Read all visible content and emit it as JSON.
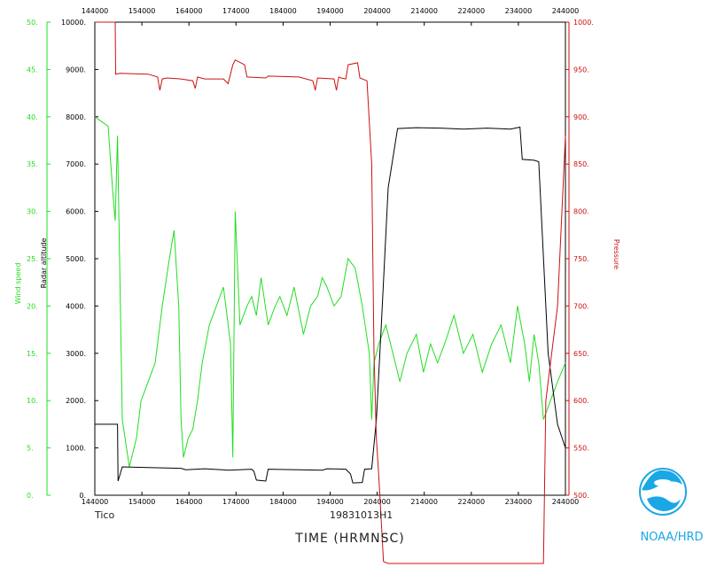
{
  "chart_data": {
    "type": "line",
    "flight_id": "19831013H1",
    "aircraft": "Tico",
    "xlabel": "TIME (HRMNSC)",
    "credit": "NOAA/HRD",
    "x_ticks_bottom": [
      "144000",
      "154000",
      "164000",
      "174000",
      "184000",
      "194000",
      "204000",
      "214000",
      "224000",
      "234000",
      "244000"
    ],
    "x_ticks_top": [
      "144000",
      "154000",
      "164000",
      "174000",
      "184000",
      "194000",
      "204000",
      "214000",
      "224000",
      "234000",
      "244000"
    ],
    "x_range_hours": [
      14.667,
      24.667
    ],
    "axes": {
      "wind": {
        "label": "Wind speed",
        "range": [
          0,
          50
        ],
        "ticks": [
          "0.",
          "5.",
          "10.",
          "15.",
          "20.",
          "25.",
          "30.",
          "35.",
          "40.",
          "45.",
          "50."
        ],
        "color": "#22dd22"
      },
      "altitude": {
        "label": "Radar altitude",
        "range": [
          0,
          10000
        ],
        "ticks": [
          "0.",
          "1000.",
          "2000.",
          "3000.",
          "4000.",
          "5000.",
          "6000.",
          "7000.",
          "8000.",
          "9000.",
          "10000."
        ],
        "color": "#000000"
      },
      "pressure": {
        "label": "Pressure",
        "range": [
          500,
          1000
        ],
        "ticks": [
          "500.",
          "550.",
          "600.",
          "650.",
          "700.",
          "750.",
          "800.",
          "850.",
          "900.",
          "950.",
          "1000."
        ],
        "color": "#cc1111"
      }
    },
    "series": [
      {
        "name": "Wind speed",
        "color": "#22dd22",
        "axis": "wind",
        "x": [
          14.667,
          14.95,
          15.05,
          15.1,
          15.15,
          15.25,
          15.4,
          15.55,
          15.65,
          15.8,
          15.95,
          16.1,
          16.25,
          16.35,
          16.45,
          16.5,
          16.55,
          16.65,
          16.75,
          16.85,
          16.95,
          17.1,
          17.25,
          17.4,
          17.55,
          17.6,
          17.65,
          17.75,
          17.9,
          18.0,
          18.1,
          18.2,
          18.35,
          18.5,
          18.6,
          18.75,
          18.9,
          19.1,
          19.25,
          19.4,
          19.5,
          19.6,
          19.75,
          19.9,
          20.05,
          20.2,
          20.35,
          20.5,
          20.55,
          20.6,
          20.7,
          20.85,
          21.0,
          21.15,
          21.3,
          21.5,
          21.65,
          21.8,
          21.95,
          22.1,
          22.3,
          22.5,
          22.7,
          22.9,
          23.1,
          23.3,
          23.5,
          23.65,
          23.8,
          23.9,
          24.0,
          24.1,
          24.2,
          24.35,
          24.5,
          24.667
        ],
        "y": [
          40,
          39,
          32,
          29,
          38,
          8,
          3,
          6,
          10,
          12,
          14,
          20,
          25,
          28,
          20,
          8,
          4,
          6,
          7,
          10,
          14,
          18,
          20,
          22,
          16,
          4,
          30,
          18,
          20,
          21,
          19,
          23,
          18,
          20,
          21,
          19,
          22,
          17,
          20,
          21,
          23,
          22,
          20,
          21,
          25,
          24,
          20,
          15,
          8,
          14,
          16,
          18,
          15,
          12,
          15,
          17,
          13,
          16,
          14,
          16,
          19,
          15,
          17,
          13,
          16,
          18,
          14,
          20,
          16,
          12,
          17,
          14,
          8,
          10,
          12,
          14
        ]
      },
      {
        "name": "Radar altitude",
        "color": "#000000",
        "axis": "altitude",
        "x": [
          14.667,
          15.15,
          15.16,
          15.25,
          16.0,
          16.5,
          16.6,
          17.0,
          17.5,
          18.0,
          18.05,
          18.1,
          18.3,
          18.35,
          19.0,
          19.5,
          19.6,
          20.0,
          20.1,
          20.15,
          20.35,
          20.4,
          20.55,
          20.65,
          20.75,
          20.9,
          21.1,
          21.5,
          22.0,
          22.5,
          23.0,
          23.5,
          23.7,
          23.75,
          24.0,
          24.1,
          24.3,
          24.5,
          24.667
        ],
        "y": [
          1500,
          1500,
          300,
          600,
          580,
          570,
          540,
          560,
          530,
          550,
          500,
          320,
          300,
          550,
          540,
          530,
          560,
          550,
          450,
          260,
          270,
          550,
          560,
          1600,
          3500,
          6500,
          7750,
          7770,
          7760,
          7740,
          7760,
          7740,
          7780,
          7100,
          7080,
          7050,
          3000,
          1500,
          1000
        ]
      },
      {
        "name": "Pressure",
        "color": "#cc1111",
        "axis": "pressure",
        "x": [
          14.667,
          15.1,
          15.11,
          15.2,
          15.8,
          16.0,
          16.05,
          16.1,
          16.2,
          16.5,
          16.75,
          16.8,
          16.85,
          17.0,
          17.4,
          17.5,
          17.6,
          17.65,
          17.85,
          17.9,
          18.3,
          18.35,
          19.0,
          19.3,
          19.35,
          19.4,
          19.75,
          19.8,
          19.85,
          19.9,
          20.0,
          20.05,
          20.25,
          20.3,
          20.45,
          20.55,
          20.6,
          20.65,
          20.7,
          20.8,
          20.9,
          20.95,
          24.0,
          24.15,
          24.2,
          24.25,
          24.5,
          24.667
        ],
        "y": [
          1000,
          1000,
          945,
          946,
          945,
          942,
          928,
          940,
          941,
          940,
          938,
          930,
          942,
          940,
          940,
          935,
          955,
          960,
          955,
          942,
          941,
          943,
          942,
          938,
          928,
          941,
          940,
          928,
          942,
          941,
          940,
          955,
          957,
          941,
          938,
          850,
          650,
          560,
          520,
          430,
          310,
          300,
          300,
          300,
          400,
          600,
          700,
          880
        ]
      }
    ]
  }
}
